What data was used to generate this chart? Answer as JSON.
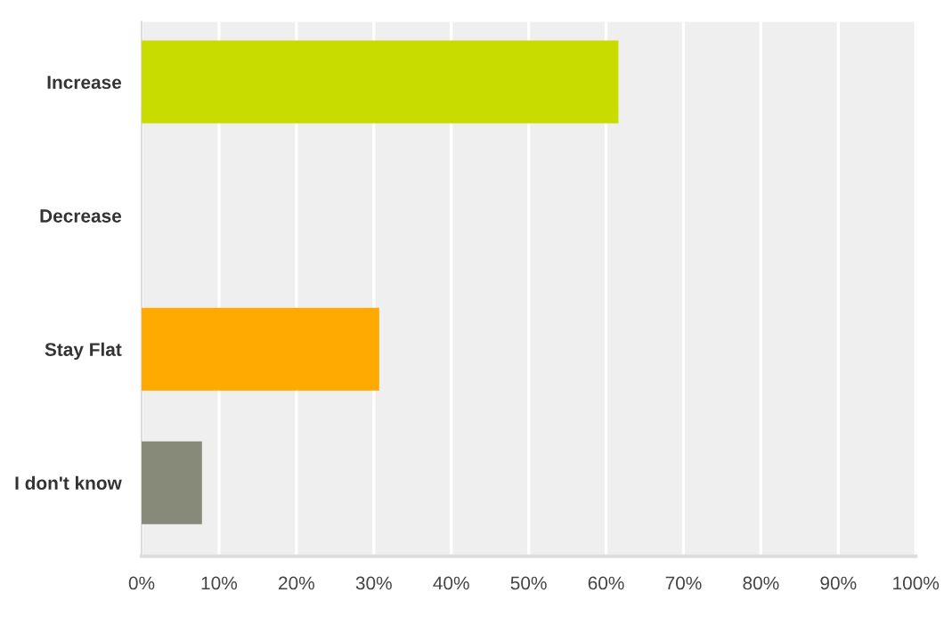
{
  "chart_data": {
    "type": "bar",
    "orientation": "horizontal",
    "categories": [
      "Increase",
      "Decrease",
      "Stay Flat",
      "I don't know"
    ],
    "values": [
      61.6,
      0,
      30.7,
      7.8
    ],
    "colors": [
      "#c8dc00",
      "#a7b81c",
      "#ffaa00",
      "#878a79"
    ],
    "xlim": [
      0,
      100
    ],
    "xticks": [
      {
        "value": 0,
        "label": "0%"
      },
      {
        "value": 10,
        "label": "10%"
      },
      {
        "value": 20,
        "label": "20%"
      },
      {
        "value": 30,
        "label": "30%"
      },
      {
        "value": 40,
        "label": "40%"
      },
      {
        "value": 50,
        "label": "50%"
      },
      {
        "value": 60,
        "label": "60%"
      },
      {
        "value": 70,
        "label": "70%"
      },
      {
        "value": 80,
        "label": "80%"
      },
      {
        "value": 90,
        "label": "90%"
      },
      {
        "value": 100,
        "label": "100%"
      }
    ],
    "grid": "x",
    "legend": false
  }
}
